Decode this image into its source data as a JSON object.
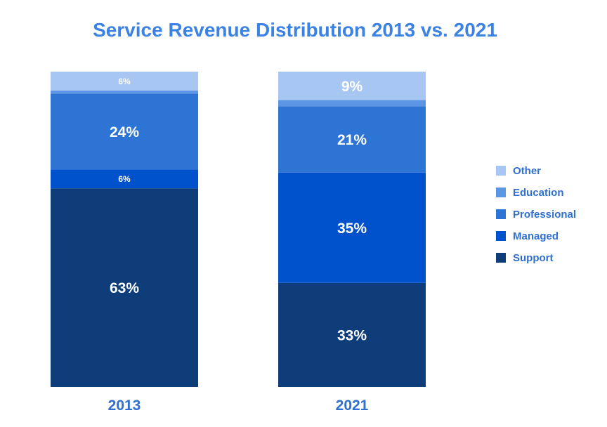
{
  "chart_data": {
    "type": "bar",
    "stacked": true,
    "normalized_percent": true,
    "title": "Service Revenue Distribution 2013 vs. 2021",
    "xlabel": "",
    "ylabel": "",
    "categories": [
      "2013",
      "2021"
    ],
    "series": [
      {
        "name": "Support",
        "color": "#0f3d7a",
        "values": [
          63,
          33
        ],
        "labels": [
          "63%",
          "33%"
        ]
      },
      {
        "name": "Managed",
        "color": "#0052cc",
        "values": [
          6,
          35
        ],
        "labels": [
          "6%",
          "35%"
        ]
      },
      {
        "name": "Professional",
        "color": "#2e74d5",
        "values": [
          24,
          21
        ],
        "labels": [
          "24%",
          "21%"
        ]
      },
      {
        "name": "Education",
        "color": "#5b95e3",
        "values": [
          1,
          2
        ],
        "labels": [
          "",
          ""
        ]
      },
      {
        "name": "Other",
        "color": "#a8c6f2",
        "values": [
          6,
          9
        ],
        "labels": [
          "6%",
          "9%"
        ]
      }
    ],
    "legend": {
      "position": "right",
      "order": [
        "Other",
        "Education",
        "Professional",
        "Managed",
        "Support"
      ]
    },
    "grid": false,
    "ylim": [
      0,
      100
    ]
  }
}
